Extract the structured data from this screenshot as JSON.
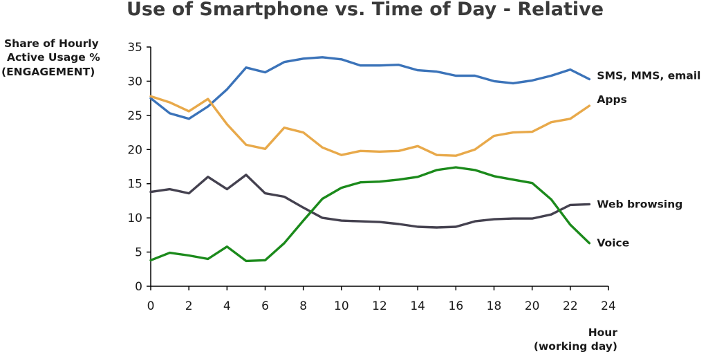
{
  "chart_data": {
    "type": "line",
    "title": "Use of Smartphone vs. Time of Day - Relative",
    "ylabel": [
      "Share of Hourly",
      "Active Usage %",
      "(ENGAGEMENT)"
    ],
    "xlabel": [
      "Hour",
      "(working day)"
    ],
    "xlim": [
      0,
      24
    ],
    "ylim": [
      0,
      35
    ],
    "xticks": [
      0,
      2,
      4,
      6,
      8,
      10,
      12,
      14,
      16,
      18,
      20,
      22,
      24
    ],
    "yticks": [
      0,
      5,
      10,
      15,
      20,
      25,
      30,
      35
    ],
    "grid": false,
    "legend": "inline labels at right end of each line",
    "x": [
      0,
      1,
      2,
      3,
      4,
      5,
      6,
      7,
      8,
      9,
      10,
      11,
      12,
      13,
      14,
      15,
      16,
      17,
      18,
      19,
      20,
      21,
      22,
      23
    ],
    "series": [
      {
        "name": "SMS, MMS, email",
        "color": "#3b73b9",
        "values": [
          27.5,
          25.3,
          24.5,
          26.3,
          28.8,
          32.0,
          31.3,
          32.8,
          33.3,
          33.5,
          33.2,
          32.3,
          32.3,
          32.4,
          31.6,
          31.4,
          30.8,
          30.8,
          30.0,
          29.7,
          30.1,
          30.8,
          31.7,
          30.3
        ]
      },
      {
        "name": "Apps",
        "color": "#e8a94a",
        "values": [
          27.8,
          26.9,
          25.6,
          27.4,
          23.7,
          20.7,
          20.1,
          23.2,
          22.5,
          20.3,
          19.2,
          19.8,
          19.7,
          19.8,
          20.5,
          19.2,
          19.1,
          20.0,
          22.0,
          22.5,
          22.6,
          24.0,
          24.5,
          26.4
        ]
      },
      {
        "name": "Web browsing",
        "color": "#44414f",
        "values": [
          13.8,
          14.2,
          13.6,
          16.0,
          14.2,
          16.3,
          13.6,
          13.1,
          11.5,
          10.0,
          9.6,
          9.5,
          9.4,
          9.1,
          8.7,
          8.6,
          8.7,
          9.5,
          9.8,
          9.9,
          9.9,
          10.5,
          11.9,
          12.0
        ]
      },
      {
        "name": "Voice",
        "color": "#1b8a1b",
        "values": [
          3.8,
          4.9,
          4.5,
          4.0,
          5.8,
          3.7,
          3.8,
          6.3,
          9.6,
          12.8,
          14.4,
          15.2,
          15.3,
          15.6,
          16.0,
          17.0,
          17.4,
          17.0,
          16.1,
          15.6,
          15.1,
          12.7,
          9.0,
          6.3
        ]
      }
    ]
  }
}
